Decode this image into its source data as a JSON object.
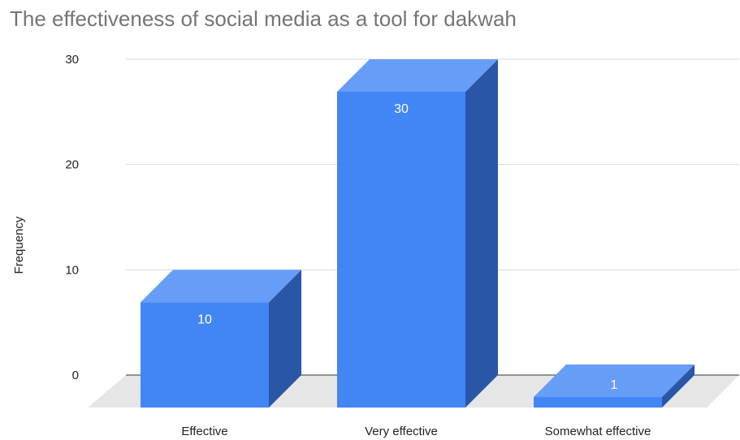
{
  "chart_data": {
    "type": "bar",
    "title": "The effectiveness of social media as a tool for dakwah",
    "ylabel": "Frequency",
    "xlabel": "",
    "categories": [
      "Effective",
      "Very effective",
      "Somewhat effective"
    ],
    "values": [
      10,
      30,
      1
    ],
    "data_labels": [
      "10",
      "30",
      "1"
    ],
    "ylim": [
      0,
      30
    ],
    "yticks": [
      0,
      10,
      20,
      30
    ],
    "grid": true,
    "three_d": true,
    "colors": {
      "front": "#4285f4",
      "top": "#669df6",
      "side": "#2a56a8",
      "floor": "#e6e6e6",
      "gridline": "#d9d9d9",
      "baseline": "#333333"
    }
  }
}
